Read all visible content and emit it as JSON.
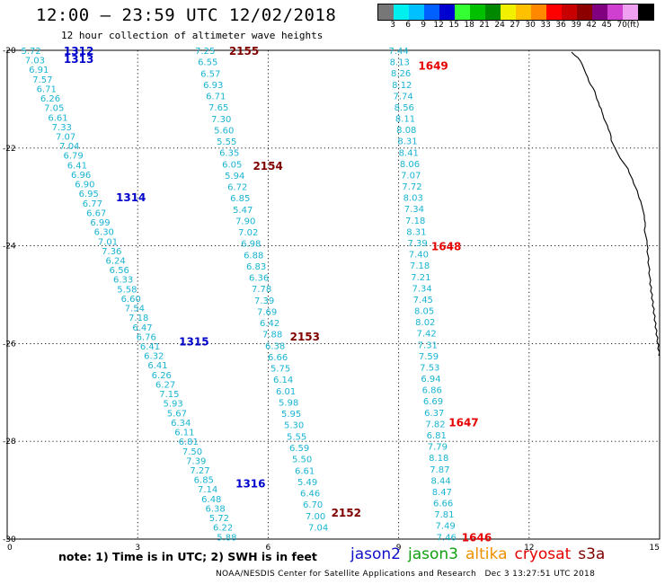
{
  "header": {
    "title": "12:00 — 23:59 UTC 12/02/2018",
    "subtitle": "12 hour collection of altimeter wave heights"
  },
  "colorbar": {
    "colors": [
      "#777777",
      "#00f0f0",
      "#00c0ff",
      "#0060ff",
      "#0000d0",
      "#33ff33",
      "#00c000",
      "#008800",
      "#f0f000",
      "#ffc000",
      "#ff8800",
      "#ff0000",
      "#c80000",
      "#8c0000",
      "#800080",
      "#d040d0",
      "#f0a0f0",
      "#000000"
    ],
    "labels": [
      "3",
      "6",
      "9",
      "12",
      "15",
      "18",
      "21",
      "24",
      "27",
      "30",
      "33",
      "36",
      "39",
      "42",
      "45",
      "70",
      "(ft)"
    ]
  },
  "axes": {
    "x_ticks": [
      "0",
      "3",
      "6",
      "9",
      "12",
      "15"
    ],
    "y_ticks": [
      "-20",
      "-22",
      "-24",
      "-26",
      "-28",
      "-30"
    ]
  },
  "chart_data": {
    "type": "scatter",
    "xlim": [
      0,
      15
    ],
    "ylim": [
      -30,
      -20
    ],
    "passes": [
      {
        "satellite": "jason2",
        "color": "#0000cc",
        "labels": [
          {
            "x": 1.3,
            "y": -20.0,
            "text": "1312"
          },
          {
            "x": 1.3,
            "y": -20.17,
            "text": "1313"
          },
          {
            "x": 2.5,
            "y": -23.0,
            "text": "1314"
          },
          {
            "x": 3.95,
            "y": -25.95,
            "text": "1315"
          },
          {
            "x": 5.25,
            "y": -28.85,
            "text": "1316"
          }
        ]
      },
      {
        "satellite": "cryosat",
        "color": "#e60000",
        "labels": [
          {
            "x": 9.45,
            "y": -20.3,
            "text": "1649"
          },
          {
            "x": 9.75,
            "y": -24.0,
            "text": "1648"
          },
          {
            "x": 10.15,
            "y": -27.6,
            "text": "1647"
          },
          {
            "x": 10.45,
            "y": -29.95,
            "text": "1646"
          }
        ]
      },
      {
        "satellite": "s3a",
        "color": "#800000",
        "labels": [
          {
            "x": 5.1,
            "y": -20.0,
            "text": "2155"
          },
          {
            "x": 5.65,
            "y": -22.35,
            "text": "2154"
          },
          {
            "x": 6.5,
            "y": -25.85,
            "text": "2153"
          },
          {
            "x": 7.45,
            "y": -29.45,
            "text": "2152"
          }
        ]
      }
    ],
    "tracks": [
      {
        "pass": "jason2 1312-1316",
        "x_start": 0.55,
        "y_start": -20.0,
        "x_end": 5.05,
        "y_end": -29.95,
        "values": [
          "5.72",
          "7.03",
          "6.91",
          "7.57",
          "6.71",
          "6.26",
          "7.05",
          "6.61",
          "7.33",
          "7.07",
          "7.04",
          "6.79",
          "6.41",
          "6.96",
          "6.90",
          "6.95",
          "6.77",
          "6.67",
          "6.99",
          "6.30",
          "7.01",
          "7.36",
          "6.24",
          "6.56",
          "6.33",
          "5.58",
          "6.60",
          "7.54",
          "7.18",
          "6.47",
          "6.76",
          "6.41",
          "6.32",
          "6.41",
          "6.26",
          "6.27",
          "7.15",
          "5.93",
          "5.67",
          "6.34",
          "6.11",
          "6.81",
          "7.50",
          "7.39",
          "7.27",
          "6.85",
          "7.14",
          "6.48",
          "6.38",
          "5.72",
          "6.22",
          "5.88"
        ]
      },
      {
        "pass": "s3a 2155-2152",
        "x_start": 4.55,
        "y_start": -20.0,
        "x_end": 7.15,
        "y_end": -29.75,
        "values": [
          "7.25",
          "6.55",
          "6.57",
          "6.93",
          "6.71",
          "7.65",
          "7.30",
          "5.60",
          "5.55",
          "6.35",
          "6.05",
          "5.94",
          "6.72",
          "6.85",
          "5.47",
          "7.90",
          "7.02",
          "6.98",
          "6.88",
          "6.83",
          "6.36",
          "7.78",
          "7.39",
          "7.69",
          "6.42",
          "7.88",
          "6.38",
          "6.66",
          "5.75",
          "6.14",
          "6.01",
          "5.98",
          "5.95",
          "5.30",
          "5.55",
          "6.59",
          "5.50",
          "6.61",
          "5.49",
          "6.46",
          "6.70",
          "7.00",
          "7.04"
        ]
      },
      {
        "pass": "cryosat 1649-1646",
        "x_start": 9.0,
        "y_start": -20.0,
        "x_end": 10.1,
        "y_end": -29.95,
        "values": [
          "7.44",
          "8.13",
          "8.26",
          "8.12",
          "7.74",
          "8.56",
          "8.11",
          "8.08",
          "8.31",
          "8.41",
          "8.06",
          "7.07",
          "7.72",
          "8.03",
          "7.34",
          "7.18",
          "8.31",
          "7.39",
          "7.40",
          "7.18",
          "7.21",
          "7.34",
          "7.45",
          "8.05",
          "8.02",
          "7.42",
          "7.31",
          "7.59",
          "7.53",
          "6.94",
          "6.86",
          "6.69",
          "6.37",
          "7.82",
          "6.81",
          "7.79",
          "8.18",
          "7.87",
          "8.44",
          "8.47",
          "6.66",
          "7.81",
          "7.49",
          "7.46"
        ]
      }
    ]
  },
  "note": "note:  1) Time is in UTC;  2) SWH is in feet",
  "legend": [
    {
      "label": "jason2",
      "color": "#1010c8"
    },
    {
      "label": "jason3",
      "color": "#10a010"
    },
    {
      "label": "altika",
      "color": "#f09000"
    },
    {
      "label": "cryosat",
      "color": "#e60000"
    },
    {
      "label": "s3a",
      "color": "#800000"
    }
  ],
  "footer": {
    "credit": "NOAA/NESDIS Center for Satellite Applications and Research",
    "timestamp": "Dec  3 13:27:51 UTC 2018"
  }
}
